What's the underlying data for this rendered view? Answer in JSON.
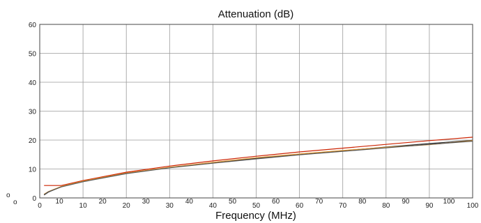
{
  "chart_data": {
    "type": "line",
    "title": "Attenuation (dB)",
    "xlabel": "Frequency (MHz)",
    "ylabel": "",
    "xlim": [
      0,
      100
    ],
    "ylim": [
      0,
      60
    ],
    "grid": true,
    "y_ticks": [
      "0",
      "10",
      "20",
      "30",
      "40",
      "50",
      "60"
    ],
    "x_ticks_grid": [
      "0",
      "10",
      "20",
      "30",
      "40",
      "50",
      "60",
      "70",
      "80",
      "90",
      "100"
    ],
    "x_ticks_secondary": [
      "10",
      "20",
      "30",
      "40",
      "50",
      "60",
      "70",
      "80",
      "90",
      "100"
    ],
    "corner_labels": [
      "o",
      "o"
    ],
    "series": [
      {
        "color": "#cc2200",
        "x": [
          1,
          5,
          10,
          20,
          30,
          40,
          50,
          60,
          70,
          80,
          90,
          100
        ],
        "y": [
          4.3,
          4.3,
          6.0,
          8.9,
          11.0,
          12.8,
          14.4,
          15.9,
          17.2,
          18.5,
          19.8,
          21.0
        ]
      },
      {
        "color": "#333333",
        "x": [
          1,
          2,
          5,
          10,
          20,
          30,
          40,
          50,
          60,
          70,
          80,
          90,
          100
        ],
        "y": [
          1.0,
          2.0,
          3.9,
          5.7,
          8.5,
          10.5,
          12.2,
          13.7,
          15.1,
          16.3,
          17.6,
          18.8,
          19.9
        ]
      },
      {
        "color": "#e09a3a",
        "x": [
          1,
          2,
          5,
          10,
          20,
          30,
          40,
          50,
          60,
          70,
          80,
          90,
          100
        ],
        "y": [
          1.3,
          2.2,
          4.0,
          5.8,
          8.6,
          10.6,
          12.3,
          13.9,
          15.2,
          16.4,
          17.5,
          18.4,
          19.8
        ]
      },
      {
        "color": "#555555",
        "x": [
          1,
          2,
          5,
          10,
          20,
          30,
          40,
          50,
          60,
          70,
          80,
          90,
          100
        ],
        "y": [
          1.1,
          2.1,
          3.8,
          5.6,
          8.4,
          10.4,
          12.0,
          13.5,
          14.9,
          16.1,
          17.3,
          18.5,
          19.6
        ]
      }
    ]
  }
}
